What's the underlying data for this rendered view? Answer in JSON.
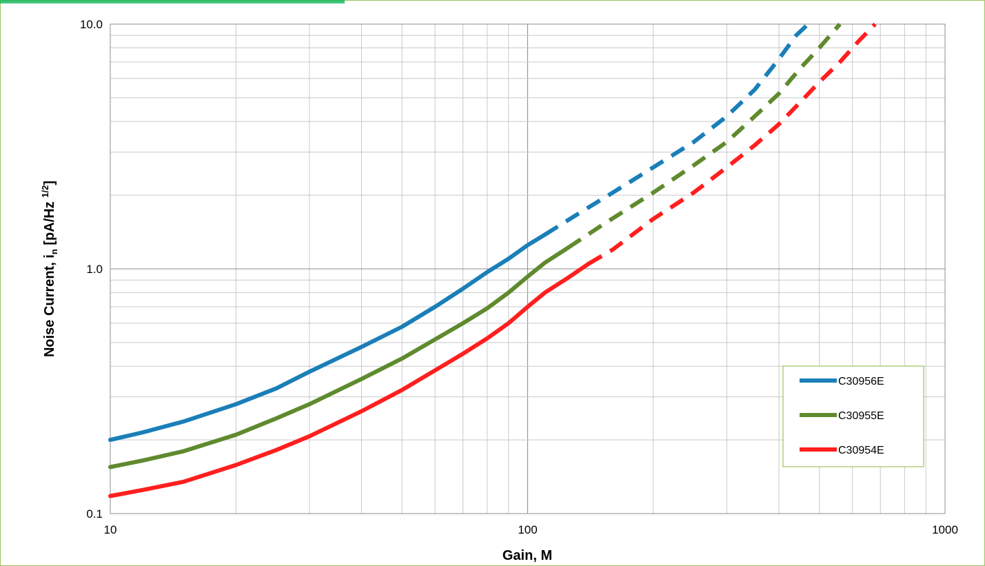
{
  "chart_data": {
    "type": "line",
    "title": "",
    "xlabel": "Gain, M",
    "ylabel": {
      "main": "Noise Current, i",
      "sub": "n",
      "units_open": " [pA/Hz ",
      "sup": "1/2",
      "units_close": "]"
    },
    "x_scale": "log",
    "y_scale": "log",
    "xlim": [
      10,
      1000
    ],
    "ylim": [
      0.1,
      10
    ],
    "x_ticks": [
      10,
      100,
      1000
    ],
    "x_tick_labels": [
      "10",
      "100",
      "1000"
    ],
    "y_ticks": [
      0.1,
      1,
      10
    ],
    "y_tick_labels": [
      "0.1",
      "1.0",
      "10.0"
    ],
    "grid": true,
    "legend_position": "right, lower",
    "series": [
      {
        "name": "C30956E",
        "color": "#1a7fb8",
        "solid": [
          [
            10,
            0.2
          ],
          [
            12,
            0.215
          ],
          [
            15,
            0.238
          ],
          [
            20,
            0.28
          ],
          [
            25,
            0.325
          ],
          [
            30,
            0.38
          ],
          [
            40,
            0.48
          ],
          [
            50,
            0.58
          ],
          [
            60,
            0.7
          ],
          [
            70,
            0.83
          ],
          [
            80,
            0.97
          ],
          [
            90,
            1.1
          ],
          [
            100,
            1.25
          ],
          [
            110,
            1.38
          ]
        ],
        "dashed": [
          [
            110,
            1.38
          ],
          [
            130,
            1.65
          ],
          [
            160,
            2.05
          ],
          [
            200,
            2.6
          ],
          [
            250,
            3.3
          ],
          [
            300,
            4.2
          ],
          [
            350,
            5.4
          ],
          [
            400,
            7.2
          ],
          [
            440,
            9.0
          ],
          [
            470,
            10.0
          ]
        ]
      },
      {
        "name": "C30955E",
        "color": "#5f8a2e",
        "solid": [
          [
            10,
            0.155
          ],
          [
            12,
            0.165
          ],
          [
            15,
            0.18
          ],
          [
            20,
            0.21
          ],
          [
            25,
            0.245
          ],
          [
            30,
            0.28
          ],
          [
            40,
            0.355
          ],
          [
            50,
            0.43
          ],
          [
            60,
            0.515
          ],
          [
            70,
            0.6
          ],
          [
            80,
            0.69
          ],
          [
            90,
            0.8
          ],
          [
            100,
            0.93
          ],
          [
            110,
            1.06
          ],
          [
            125,
            1.22
          ]
        ],
        "dashed": [
          [
            125,
            1.22
          ],
          [
            150,
            1.5
          ],
          [
            200,
            2.05
          ],
          [
            250,
            2.65
          ],
          [
            300,
            3.3
          ],
          [
            350,
            4.2
          ],
          [
            400,
            5.2
          ],
          [
            450,
            6.6
          ],
          [
            500,
            8.0
          ],
          [
            560,
            10.0
          ]
        ]
      },
      {
        "name": "C30954E",
        "color": "#ff1f1f",
        "solid": [
          [
            10,
            0.118
          ],
          [
            12,
            0.125
          ],
          [
            15,
            0.135
          ],
          [
            20,
            0.158
          ],
          [
            25,
            0.182
          ],
          [
            30,
            0.207
          ],
          [
            40,
            0.262
          ],
          [
            50,
            0.32
          ],
          [
            60,
            0.385
          ],
          [
            70,
            0.45
          ],
          [
            80,
            0.52
          ],
          [
            90,
            0.6
          ],
          [
            100,
            0.7
          ],
          [
            110,
            0.8
          ],
          [
            125,
            0.92
          ],
          [
            140,
            1.05
          ]
        ],
        "dashed": [
          [
            140,
            1.05
          ],
          [
            160,
            1.2
          ],
          [
            200,
            1.6
          ],
          [
            250,
            2.05
          ],
          [
            300,
            2.6
          ],
          [
            350,
            3.2
          ],
          [
            400,
            3.9
          ],
          [
            450,
            4.8
          ],
          [
            500,
            5.8
          ],
          [
            560,
            7.0
          ],
          [
            620,
            8.5
          ],
          [
            680,
            10.0
          ]
        ]
      }
    ]
  }
}
